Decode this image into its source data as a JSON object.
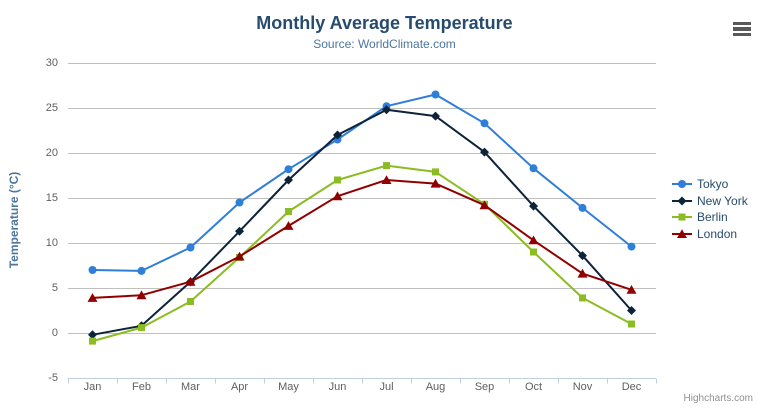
{
  "credits": "Highcharts.com",
  "context_menu": {
    "icon": "hamburger-icon"
  },
  "colors": {
    "title": "#274b6d",
    "subtitle": "#4d759e",
    "axis_title": "#4d759e",
    "axis_labels": "#606060",
    "grid_line": "#c0c0c0",
    "axis_line": "#c0d0e0",
    "legend_text": "#274b6d",
    "credits_text": "#909090"
  },
  "chart_data": {
    "type": "line",
    "title": "Monthly Average Temperature",
    "subtitle": "Source: WorldClimate.com",
    "xlabel": "",
    "ylabel": "Temperature (°C)",
    "ylim": [
      -5,
      30
    ],
    "yticks": [
      30,
      25,
      20,
      15,
      10,
      5,
      0,
      -5
    ],
    "grid": true,
    "legend_position": "right",
    "categories": [
      "Jan",
      "Feb",
      "Mar",
      "Apr",
      "May",
      "Jun",
      "Jul",
      "Aug",
      "Sep",
      "Oct",
      "Nov",
      "Dec"
    ],
    "series": [
      {
        "name": "Tokyo",
        "color": "#2f7ed8",
        "marker": "circle",
        "values": [
          7.0,
          6.9,
          9.5,
          14.5,
          18.2,
          21.5,
          25.2,
          26.5,
          23.3,
          18.3,
          13.9,
          9.6
        ]
      },
      {
        "name": "New York",
        "color": "#0d233a",
        "marker": "diamond",
        "values": [
          -0.2,
          0.8,
          5.7,
          11.3,
          17.0,
          22.0,
          24.8,
          24.1,
          20.1,
          14.1,
          8.6,
          2.5
        ]
      },
      {
        "name": "Berlin",
        "color": "#8bbc21",
        "marker": "square",
        "values": [
          -0.9,
          0.6,
          3.5,
          8.4,
          13.5,
          17.0,
          18.6,
          17.9,
          14.3,
          9.0,
          3.9,
          1.0
        ]
      },
      {
        "name": "London",
        "color": "#910000",
        "marker": "triangle",
        "values": [
          3.9,
          4.2,
          5.7,
          8.5,
          11.9,
          15.2,
          17.0,
          16.6,
          14.2,
          10.3,
          6.6,
          4.8
        ]
      }
    ]
  }
}
